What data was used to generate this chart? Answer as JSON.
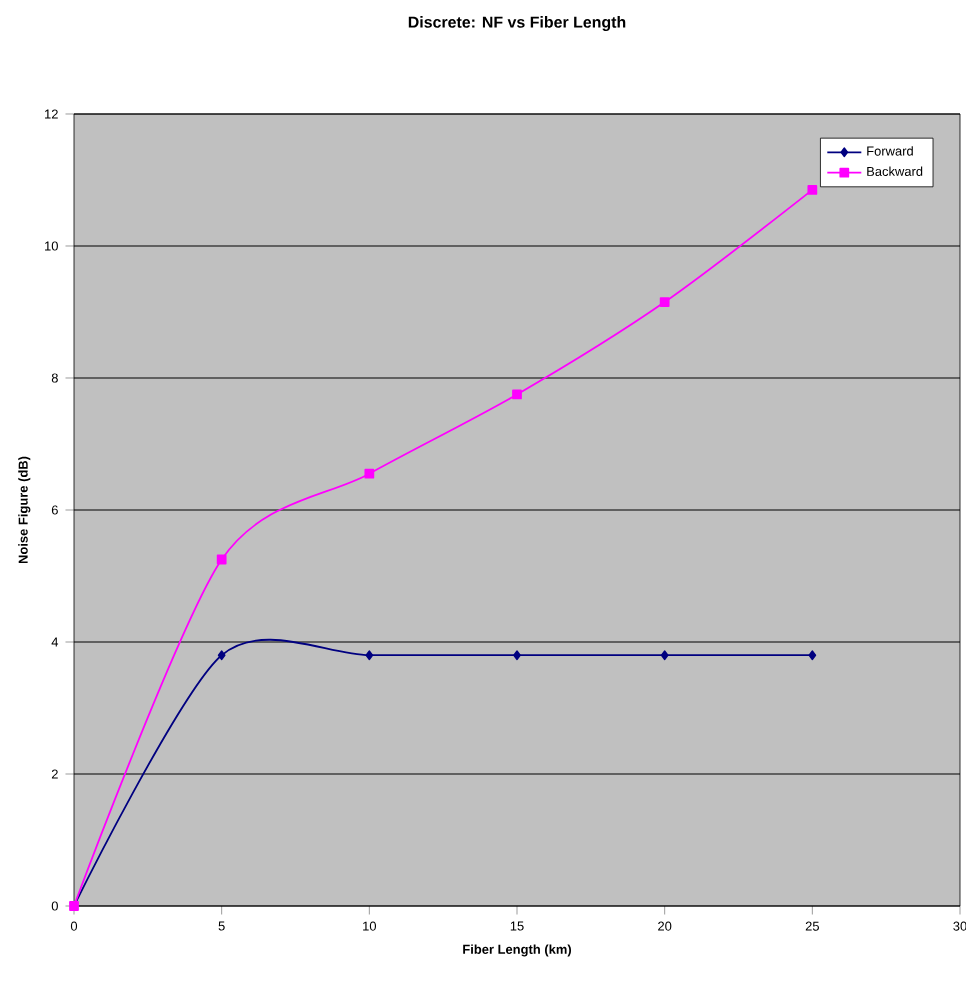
{
  "chart_data": {
    "type": "line",
    "title": "Discrete: NF vs Fiber Length",
    "xlabel": "Fiber Length (km)",
    "ylabel": "Noise Figure (dB)",
    "x": [
      0,
      5,
      10,
      15,
      20,
      25
    ],
    "series": [
      {
        "name": "Forward",
        "color": "#000080",
        "marker": "diamond",
        "values": [
          0,
          3.8,
          3.8,
          3.8,
          3.8,
          3.8
        ]
      },
      {
        "name": "Backward",
        "color": "#ff00ff",
        "marker": "square",
        "values": [
          0,
          5.25,
          6.55,
          7.75,
          9.15,
          10.85
        ]
      }
    ],
    "xlim": [
      0,
      30
    ],
    "xticks": [
      0,
      5,
      10,
      15,
      20,
      25,
      30
    ],
    "ylim": [
      0,
      12
    ],
    "yticks": [
      0,
      2,
      4,
      6,
      8,
      10,
      12
    ],
    "grid": "y",
    "legend": "top right"
  }
}
